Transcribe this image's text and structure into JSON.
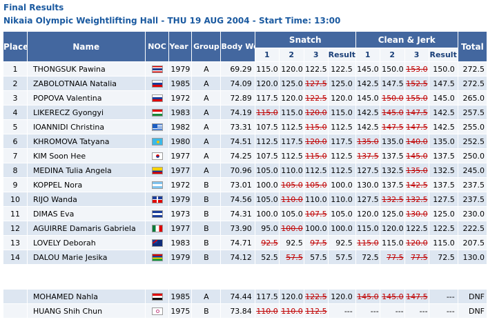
{
  "header": {
    "title": "Final Results",
    "subtitle": "Nikaia Olympic Weightlifting Hall - THU 19 AUG 2004 - Start Time: 13:00"
  },
  "columns": {
    "place": "Place",
    "name": "Name",
    "noc": "NOC",
    "year": "Year of Birth",
    "group": "Group",
    "bodyweight": "Body Weight (kg)",
    "snatch": "Snatch",
    "clean_jerk": "Clean & Jerk",
    "total": "Total",
    "attempt1": "1",
    "attempt2": "2",
    "attempt3": "3",
    "result": "Result"
  },
  "rows": [
    {
      "place": "1",
      "name": "THONGSUK  Pawina",
      "flag": "thai",
      "year": "1979",
      "group": "A",
      "bw": "69.29",
      "s1": "115.0",
      "s2": "120.0",
      "s3": "122.5",
      "sr": "122.5",
      "c1": "145.0",
      "c2": "150.0",
      "c3": "153.0",
      "cr": "150.0",
      "total": "272.5",
      "fails": [
        "c3"
      ]
    },
    {
      "place": "2",
      "name": "ZABOLOTNAIA  Natalia",
      "flag": "russia",
      "year": "1985",
      "group": "A",
      "bw": "74.09",
      "s1": "120.0",
      "s2": "125.0",
      "s3": "127.5",
      "sr": "125.0",
      "c1": "142.5",
      "c2": "147.5",
      "c3": "152.5",
      "cr": "147.5",
      "total": "272.5",
      "fails": [
        "s3",
        "c3"
      ]
    },
    {
      "place": "3",
      "name": "POPOVA  Valentina",
      "flag": "russia",
      "year": "1972",
      "group": "A",
      "bw": "72.89",
      "s1": "117.5",
      "s2": "120.0",
      "s3": "122.5",
      "sr": "120.0",
      "c1": "145.0",
      "c2": "150.0",
      "c3": "155.0",
      "cr": "145.0",
      "total": "265.0",
      "fails": [
        "s3",
        "c2",
        "c3"
      ]
    },
    {
      "place": "4",
      "name": "LIKERECZ  Gyongyi",
      "flag": "hungary",
      "year": "1983",
      "group": "A",
      "bw": "74.19",
      "s1": "115.0",
      "s2": "115.0",
      "s3": "120.0",
      "sr": "115.0",
      "c1": "142.5",
      "c2": "145.0",
      "c3": "147.5",
      "cr": "142.5",
      "total": "257.5",
      "fails": [
        "s1",
        "s3",
        "c2",
        "c3"
      ]
    },
    {
      "place": "5",
      "name": "IOANNIDI  Christina",
      "flag": "greece",
      "year": "1982",
      "group": "A",
      "bw": "73.31",
      "s1": "107.5",
      "s2": "112.5",
      "s3": "115.0",
      "sr": "112.5",
      "c1": "142.5",
      "c2": "147.5",
      "c3": "147.5",
      "cr": "142.5",
      "total": "255.0",
      "fails": [
        "s3",
        "c2",
        "c3"
      ]
    },
    {
      "place": "6",
      "name": "KHROMOVA  Tatyana",
      "flag": "kazakhstan",
      "year": "1980",
      "group": "A",
      "bw": "74.51",
      "s1": "112.5",
      "s2": "117.5",
      "s3": "120.0",
      "sr": "117.5",
      "c1": "135.0",
      "c2": "135.0",
      "c3": "140.0",
      "cr": "135.0",
      "total": "252.5",
      "fails": [
        "s3",
        "c1",
        "c3"
      ]
    },
    {
      "place": "7",
      "name": "KIM  Soon  Hee",
      "flag": "korea",
      "year": "1977",
      "group": "A",
      "bw": "74.25",
      "s1": "107.5",
      "s2": "112.5",
      "s3": "115.0",
      "sr": "112.5",
      "c1": "137.5",
      "c2": "137.5",
      "c3": "145.0",
      "cr": "137.5",
      "total": "250.0",
      "fails": [
        "s3",
        "c1",
        "c3"
      ]
    },
    {
      "place": "8",
      "name": "MEDINA  Tulia  Angela",
      "flag": "colombia",
      "year": "1977",
      "group": "A",
      "bw": "70.96",
      "s1": "105.0",
      "s2": "110.0",
      "s3": "112.5",
      "sr": "112.5",
      "c1": "127.5",
      "c2": "132.5",
      "c3": "135.0",
      "cr": "132.5",
      "total": "245.0",
      "fails": [
        "c3"
      ]
    },
    {
      "place": "9",
      "name": "KOPPEL  Nora",
      "flag": "argentina",
      "year": "1972",
      "group": "B",
      "bw": "73.01",
      "s1": "100.0",
      "s2": "105.0",
      "s3": "105.0",
      "sr": "100.0",
      "c1": "130.0",
      "c2": "137.5",
      "c3": "142.5",
      "cr": "137.5",
      "total": "237.5",
      "fails": [
        "s2",
        "s3",
        "c3"
      ]
    },
    {
      "place": "10",
      "name": "RIJO  Wanda",
      "flag": "dominican",
      "year": "1979",
      "group": "B",
      "bw": "74.56",
      "s1": "105.0",
      "s2": "110.0",
      "s3": "110.0",
      "sr": "110.0",
      "c1": "127.5",
      "c2": "132.5",
      "c3": "132.5",
      "cr": "127.5",
      "total": "237.5",
      "fails": [
        "s2",
        "c2",
        "c3"
      ]
    },
    {
      "place": "11",
      "name": "DIMAS  Eva",
      "flag": "salvador",
      "year": "1973",
      "group": "B",
      "bw": "74.31",
      "s1": "100.0",
      "s2": "105.0",
      "s3": "107.5",
      "sr": "105.0",
      "c1": "120.0",
      "c2": "125.0",
      "c3": "130.0",
      "cr": "125.0",
      "total": "230.0",
      "fails": [
        "s3",
        "c3"
      ]
    },
    {
      "place": "12",
      "name": "AGUIRRE  Damaris  Gabriela",
      "flag": "mexico",
      "year": "1977",
      "group": "B",
      "bw": "73.90",
      "s1": "95.0",
      "s2": "100.0",
      "s3": "100.0",
      "sr": "100.0",
      "c1": "115.0",
      "c2": "120.0",
      "c3": "122.5",
      "cr": "122.5",
      "total": "222.5",
      "fails": [
        "s2"
      ]
    },
    {
      "place": "13",
      "name": "LOVELY  Deborah",
      "flag": "australia",
      "year": "1983",
      "group": "B",
      "bw": "74.71",
      "s1": "92.5",
      "s2": "92.5",
      "s3": "97.5",
      "sr": "92.5",
      "c1": "115.0",
      "c2": "115.0",
      "c3": "120.0",
      "cr": "115.0",
      "total": "207.5",
      "fails": [
        "s1",
        "s3",
        "c1",
        "c3"
      ]
    },
    {
      "place": "14",
      "name": "DALOU  Marie  Jesika",
      "flag": "mauritius",
      "year": "1979",
      "group": "B",
      "bw": "74.12",
      "s1": "52.5",
      "s2": "57.5",
      "s3": "57.5",
      "sr": "57.5",
      "c1": "72.5",
      "c2": "77.5",
      "c3": "77.5",
      "cr": "72.5",
      "total": "130.0",
      "fails": [
        "s2",
        "c2",
        "c3"
      ]
    }
  ],
  "dnf_rows": [
    {
      "place": "",
      "name": "MOHAMED  Nahla",
      "flag": "egypt",
      "year": "1985",
      "group": "A",
      "bw": "74.44",
      "s1": "117.5",
      "s2": "120.0",
      "s3": "122.5",
      "sr": "120.0",
      "c1": "145.0",
      "c2": "145.0",
      "c3": "147.5",
      "cr": "---",
      "total": "DNF",
      "fails": [
        "s3",
        "c1",
        "c2",
        "c3"
      ]
    },
    {
      "place": "",
      "name": "HUANG  Shih  Chun",
      "flag": "puertorico",
      "year": "1975",
      "group": "B",
      "bw": "73.84",
      "s1": "110.0",
      "s2": "110.0",
      "s3": "112.5",
      "sr": "---",
      "c1": "---",
      "c2": "---",
      "c3": "---",
      "cr": "---",
      "total": "DNF",
      "fails": [
        "s1",
        "s2",
        "s3"
      ]
    }
  ],
  "colors": {
    "title": "#1b5aa0",
    "header_bg": "#43679f",
    "row_light": "#f2f5f9",
    "row_dark": "#dde6f1",
    "failed_lift": "#c00000"
  }
}
